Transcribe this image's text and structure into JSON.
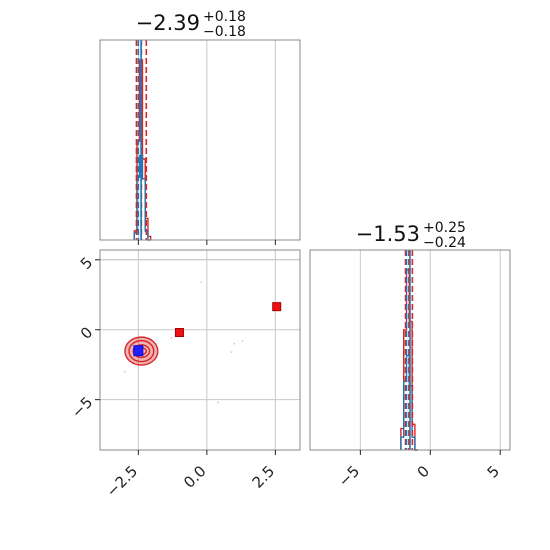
{
  "chart_data": [
    {
      "id": "param1",
      "type": "histogram",
      "title": {
        "value": "−2.39",
        "plus": "+0.18",
        "minus": "−0.18"
      },
      "xlim": [
        -3.9,
        3.4
      ],
      "xticks": [
        -2.5,
        0.0,
        2.5
      ],
      "bins": [
        -2.65,
        -2.55,
        -2.45,
        -2.35,
        -2.25,
        -2.15,
        -2.05
      ],
      "series": [
        {
          "color": "#d62728",
          "counts": [
            0.05,
            0.55,
            1.0,
            0.45,
            0.12,
            0.02
          ]
        },
        {
          "color": "#1f77b4",
          "counts": [
            0.04,
            0.35,
            0.47,
            0.34,
            0.05,
            0.0
          ]
        }
      ],
      "markers": [
        {
          "color": "#d62728",
          "style": "dashed",
          "x": -2.57
        },
        {
          "color": "#d62728",
          "style": "dashed",
          "x": -2.39
        },
        {
          "color": "#d62728",
          "style": "dashed",
          "x": -2.21
        },
        {
          "color": "#1f77b4",
          "style": "dashed",
          "x": -2.5
        },
        {
          "color": "#1f77b4",
          "style": "solid",
          "x": -2.4
        }
      ]
    },
    {
      "id": "param2",
      "type": "histogram",
      "title": {
        "value": "−1.53",
        "plus": "+0.25",
        "minus": "−0.24"
      },
      "xlim": [
        -8.6,
        5.7
      ],
      "xticks": [
        -5,
        0,
        5
      ],
      "xticklabels": [
        "−5",
        "0",
        "5"
      ],
      "bins": [
        -2.1,
        -1.9,
        -1.7,
        -1.5,
        -1.3,
        -1.1,
        -0.9
      ],
      "series": [
        {
          "color": "#d62728",
          "counts": [
            0.05,
            0.28,
            0.42,
            0.3,
            0.06,
            0.0
          ]
        },
        {
          "color": "#1f77b4",
          "counts": [
            0.03,
            0.16,
            0.22,
            0.15,
            0.03,
            0.0
          ]
        }
      ],
      "markers": [
        {
          "color": "#d62728",
          "style": "dashed",
          "x": -1.77
        },
        {
          "color": "#d62728",
          "style": "dashed",
          "x": -1.53
        },
        {
          "color": "#d62728",
          "style": "dashed",
          "x": -1.28
        },
        {
          "color": "#1f77b4",
          "style": "dashed",
          "x": -1.7
        },
        {
          "color": "#1f77b4",
          "style": "solid",
          "x": -1.45
        }
      ]
    },
    {
      "id": "joint",
      "type": "scatter",
      "xlim": [
        -3.9,
        3.4
      ],
      "ylim": [
        -8.6,
        5.7
      ],
      "xticks": [
        -2.5,
        0.0,
        2.5
      ],
      "xticklabels": [
        "−2.5",
        "0.0",
        "2.5"
      ],
      "yticks": [
        -5,
        0,
        5
      ],
      "yticklabels": [
        "−5",
        "0",
        "5"
      ],
      "gridlines_y": [
        5.0
      ],
      "contours": {
        "color": "#d62728",
        "center": [
          -2.39,
          -1.53
        ],
        "radii": [
          [
            0.18,
            0.25
          ],
          [
            0.3,
            0.45
          ],
          [
            0.45,
            0.75
          ],
          [
            0.6,
            1.0
          ]
        ]
      },
      "red_points": [
        [
          -1.0,
          -0.2
        ],
        [
          2.55,
          1.65
        ]
      ],
      "blue_points": [
        [
          -2.5,
          -1.5
        ]
      ],
      "faint_points": [
        [
          -3.0,
          -3.0
        ],
        [
          -0.2,
          3.4
        ],
        [
          1.0,
          -1.0
        ],
        [
          1.3,
          -0.8
        ],
        [
          0.4,
          -5.2
        ],
        [
          -1.3,
          -0.6
        ],
        [
          0.9,
          -1.6
        ]
      ]
    }
  ]
}
